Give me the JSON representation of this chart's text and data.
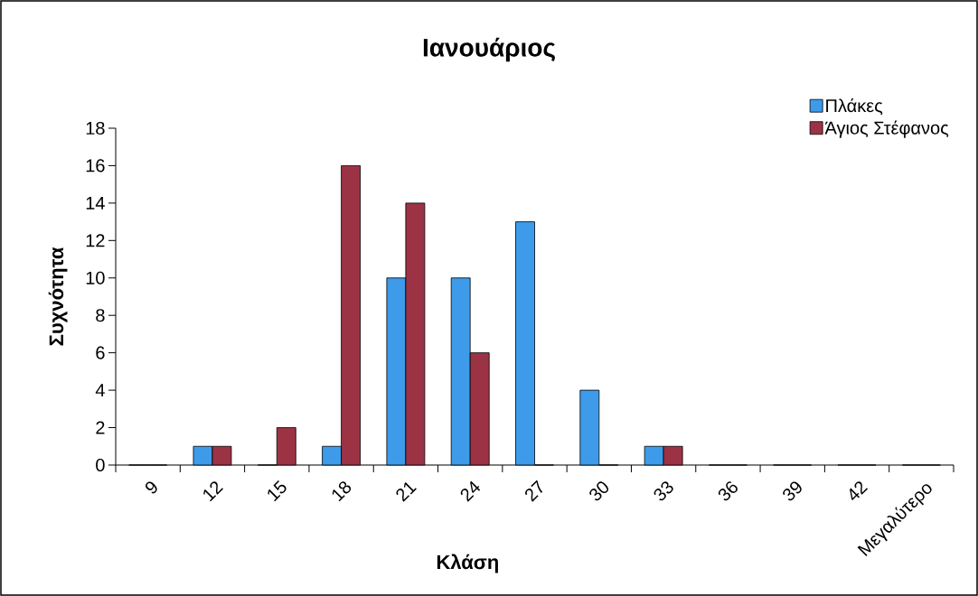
{
  "chart_data": {
    "type": "bar",
    "title": "Ιανουάριος",
    "xlabel": "Κλάση",
    "ylabel": "Συχνότητα",
    "categories": [
      "9",
      "12",
      "15",
      "18",
      "21",
      "24",
      "27",
      "30",
      "33",
      "36",
      "39",
      "42",
      "Μεγαλύτερο"
    ],
    "series": [
      {
        "name": "Πλάκες",
        "color": "#3d9be9",
        "values": [
          0,
          1,
          0,
          1,
          10,
          10,
          13,
          4,
          1,
          0,
          0,
          0,
          0
        ]
      },
      {
        "name": "Άγιος Στέφανος",
        "color": "#9b3345",
        "values": [
          0,
          1,
          2,
          16,
          14,
          6,
          0,
          0,
          1,
          0,
          0,
          0,
          0
        ]
      }
    ],
    "ylim": [
      0,
      18
    ],
    "yticks": [
      0,
      2,
      4,
      6,
      8,
      10,
      12,
      14,
      16,
      18
    ],
    "grid": false,
    "legend": "top right"
  }
}
